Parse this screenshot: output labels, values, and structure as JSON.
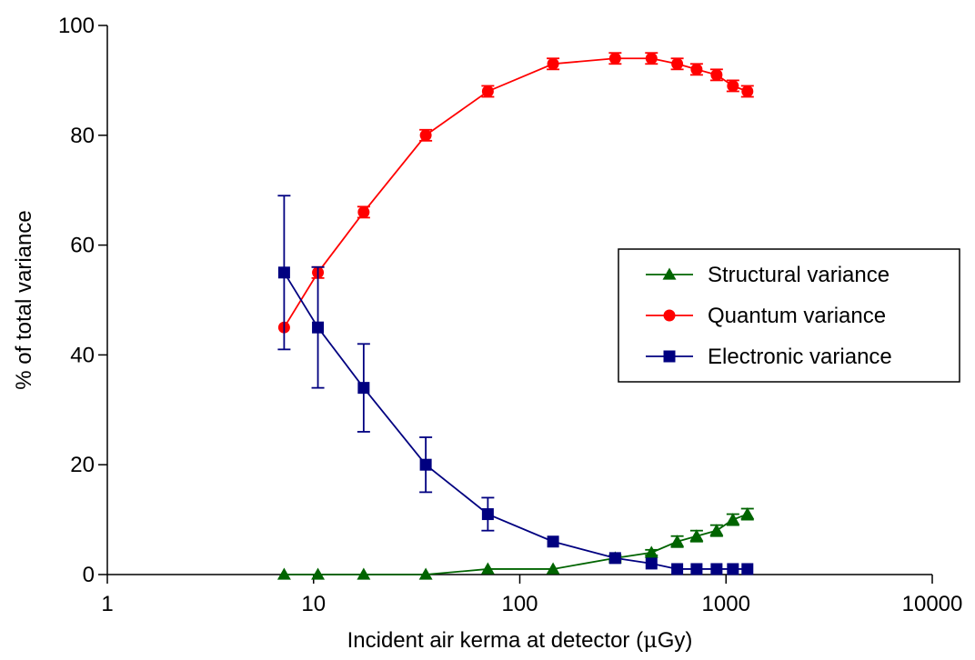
{
  "chart_data": {
    "type": "line",
    "xlabel_prefix": "Incident air kerma at detector (",
    "xlabel_mu": "μ",
    "xlabel_suffix": "Gy)",
    "ylabel": "% of total variance",
    "xscale": "log",
    "xlim": [
      1,
      10000
    ],
    "ylim": [
      0,
      100
    ],
    "xticks": [
      1,
      10,
      100,
      1000,
      10000
    ],
    "xtick_labels": [
      "1",
      "10",
      "100",
      "1000",
      "10000"
    ],
    "yticks": [
      0,
      20,
      40,
      60,
      80,
      100
    ],
    "ytick_labels": [
      "0",
      "20",
      "40",
      "60",
      "80",
      "100"
    ],
    "grid": false,
    "legend_position": "right",
    "x": [
      7.2,
      10.5,
      17.5,
      35,
      70,
      145,
      290,
      435,
      580,
      720,
      900,
      1080,
      1270
    ],
    "series": [
      {
        "name": "Structural variance",
        "marker": "triangle",
        "color": "#006400",
        "values": [
          0,
          0,
          0,
          0,
          1,
          1,
          3,
          4,
          6,
          7,
          8,
          10,
          11
        ],
        "errors": [
          0,
          0,
          0,
          0,
          0,
          0,
          0.5,
          0.5,
          1,
          1,
          1,
          1,
          1
        ]
      },
      {
        "name": "Quantum variance",
        "marker": "circle",
        "color": "#ff0000",
        "values": [
          45,
          55,
          66,
          80,
          88,
          93,
          94,
          94,
          93,
          92,
          91,
          89,
          88
        ],
        "errors": [
          0,
          1,
          1,
          1,
          1,
          1,
          1,
          1,
          1,
          1,
          1,
          1,
          1
        ]
      },
      {
        "name": "Electronic variance",
        "marker": "square",
        "color": "#000080",
        "values": [
          55,
          45,
          34,
          20,
          11,
          6,
          3,
          2,
          1,
          1,
          1,
          1,
          1
        ],
        "errors": [
          14,
          11,
          8,
          5,
          3,
          0,
          0,
          0,
          0,
          0,
          0,
          0,
          0
        ]
      }
    ]
  }
}
